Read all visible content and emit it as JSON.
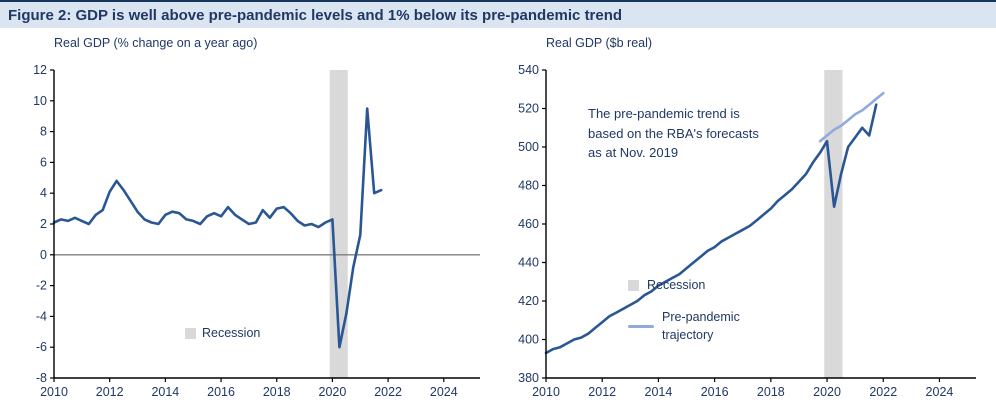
{
  "figure": {
    "title": "Figure 2: GDP is well above pre-pandemic levels and 1% below its pre-pandemic trend"
  },
  "colors": {
    "text": "#1f3864",
    "title_bg": "#dbe5f1",
    "line_dark": "#2a5794",
    "line_light": "#8faadc",
    "recession": "#d9d9d9",
    "zero_line": "#7f7f7f",
    "axis": "#000000"
  },
  "chart_data": [
    {
      "type": "line",
      "title": "Real GDP (% change on a year ago)",
      "xlabel": "",
      "ylabel": "",
      "xlim": [
        2010,
        2025.3
      ],
      "ylim": [
        -8,
        12
      ],
      "xticks": [
        2010,
        2012,
        2014,
        2016,
        2018,
        2020,
        2022,
        2024
      ],
      "yticks": [
        -8,
        -6,
        -4,
        -2,
        0,
        2,
        4,
        6,
        8,
        10,
        12
      ],
      "grid": "zero-line-only",
      "zero_line": 0,
      "recession_band": {
        "x0": 2019.9,
        "x1": 2020.55
      },
      "legend": {
        "recession": "Recession"
      },
      "legend_position": "inside-lower-center",
      "series": [
        {
          "name": "Real GDP year-ended growth (%)",
          "color": "#2a5794",
          "width": 2.6,
          "x_start": 2010,
          "x_step": 0.25,
          "values": [
            2.1,
            2.3,
            2.2,
            2.4,
            2.2,
            2.0,
            2.6,
            2.9,
            4.1,
            4.8,
            4.2,
            3.5,
            2.8,
            2.3,
            2.1,
            2.0,
            2.6,
            2.8,
            2.7,
            2.3,
            2.2,
            2.0,
            2.5,
            2.7,
            2.5,
            3.1,
            2.6,
            2.3,
            2.0,
            2.1,
            2.9,
            2.4,
            3.0,
            3.1,
            2.7,
            2.2,
            1.9,
            2.0,
            1.8,
            2.1,
            2.3,
            -6.0,
            -3.8,
            -0.8,
            1.3,
            9.5,
            4.0,
            4.2
          ]
        }
      ]
    },
    {
      "type": "line",
      "title": "Real GDP ($b real)",
      "xlabel": "",
      "ylabel": "",
      "xlim": [
        2010,
        2025.3
      ],
      "ylim": [
        380,
        540
      ],
      "xticks": [
        2010,
        2012,
        2014,
        2016,
        2018,
        2020,
        2022,
        2024
      ],
      "yticks": [
        380,
        400,
        420,
        440,
        460,
        480,
        500,
        520,
        540
      ],
      "grid": "off",
      "recession_band": {
        "x0": 2019.9,
        "x1": 2020.55
      },
      "annotation": "The pre-pandemic trend is based on the RBA's forecasts as at Nov. 2019",
      "legend": {
        "recession": "Recession",
        "trajectory": "Pre-pandemic trajectory"
      },
      "legend_position": "inside-lower-center",
      "series": [
        {
          "name": "Pre-pandemic trajectory",
          "color": "#8faadc",
          "width": 2.6,
          "x_start": 2019.75,
          "x_step": 0.25,
          "values": [
            503,
            506,
            509,
            511,
            514,
            517,
            519,
            522,
            525,
            528
          ]
        },
        {
          "name": "Real GDP level ($b)",
          "color": "#2a5794",
          "width": 2.6,
          "x_start": 2010,
          "x_step": 0.25,
          "values": [
            393,
            395,
            396,
            398,
            400,
            401,
            403,
            406,
            409,
            412,
            414,
            416,
            418,
            420,
            423,
            425,
            428,
            430,
            432,
            434,
            437,
            440,
            443,
            446,
            448,
            451,
            453,
            455,
            457,
            459,
            462,
            465,
            468,
            472,
            475,
            478,
            482,
            486,
            492,
            497,
            503,
            469,
            486,
            500,
            505,
            510,
            506,
            522
          ]
        }
      ]
    }
  ]
}
